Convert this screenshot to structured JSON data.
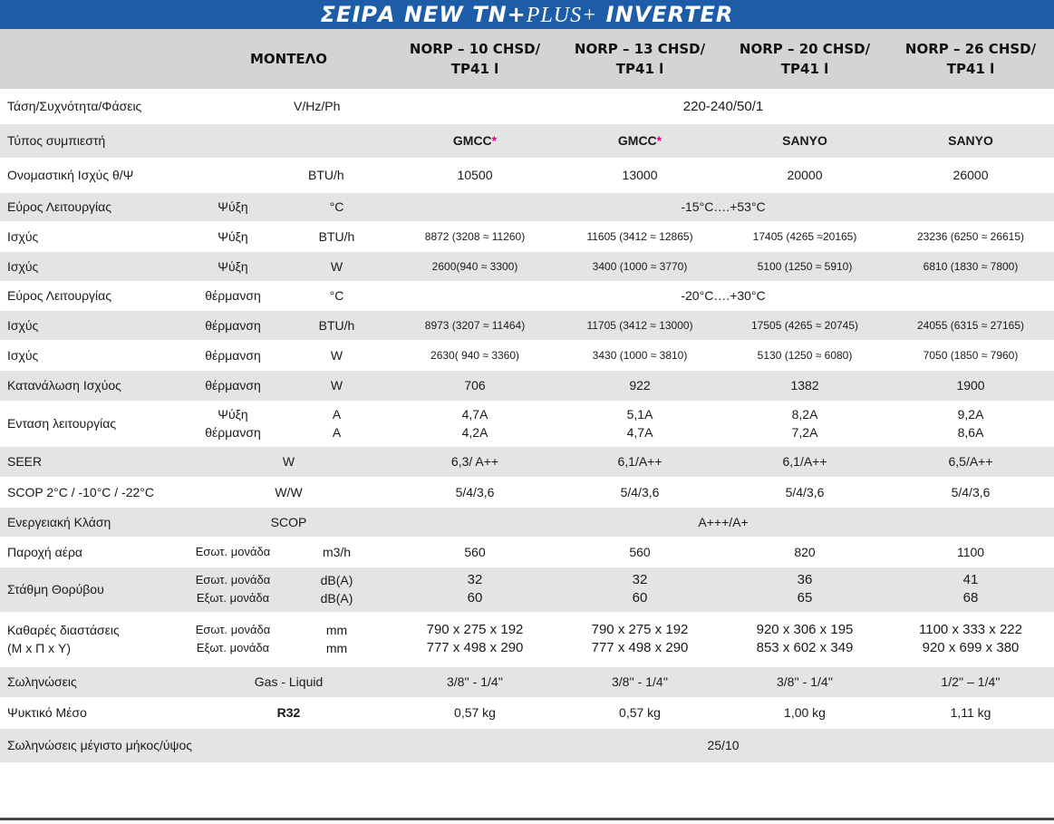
{
  "title": {
    "main": "ΣΕΙΡΑ NEW TN+",
    "plus": "PLUS+",
    "inverter": " INVERTER"
  },
  "header": {
    "model_label": "ΜΟΝΤΕΛΟ",
    "models": [
      {
        "line1": "NORP – 10 CHSD/",
        "line2": "TP41 l"
      },
      {
        "line1": "NORP – 13 CHSD/",
        "line2": "TP41 l"
      },
      {
        "line1": "NORP – 20 CHSD/",
        "line2": "TP41 l"
      },
      {
        "line1": "NORP – 26 CHSD/",
        "line2": "TP41 l"
      }
    ]
  },
  "rows": {
    "voltage": {
      "label": "Τάση/Συχνότητα/Φάσεις",
      "unit": "V/Hz/Ph",
      "value": "220-240/50/1"
    },
    "compressor": {
      "label": "Τύπος συμπιεστή",
      "values": [
        "GMCC",
        "GMCC",
        "SANYO",
        "SANYO"
      ],
      "star": "*"
    },
    "nominal": {
      "label": "Ονομαστική Ισχύς θ/Ψ",
      "unit": "BTU/h",
      "values": [
        "10500",
        "13000",
        "20000",
        "26000"
      ]
    },
    "range_cool": {
      "label": "Εύρος Λειτουργίας",
      "mode": "Ψύξη",
      "unit": "°C",
      "value": "-15°C….+53°C"
    },
    "cool_btu": {
      "label": "Ισχύς",
      "mode": "Ψύξη",
      "unit": "BTU/h",
      "values": [
        "8872 (3208 ≈ 11260)",
        "11605 (3412 ≈ 12865)",
        "17405 (4265 ≈20165)",
        "23236 (6250 ≈ 26615)"
      ]
    },
    "cool_w": {
      "label": "Ισχύς",
      "mode": "Ψύξη",
      "unit": "W",
      "values": [
        "2600(940 ≈ 3300)",
        "3400 (1000 ≈ 3770)",
        "5100 (1250 ≈ 5910)",
        "6810 (1830 ≈ 7800)"
      ]
    },
    "range_heat": {
      "label": "Εύρος Λειτουργίας",
      "mode": "θέρμανση",
      "unit": "°C",
      "value": "-20°C….+30°C"
    },
    "heat_btu": {
      "label": "Ισχύς",
      "mode": "θέρμανση",
      "unit": "BTU/h",
      "values": [
        "8973 (3207 ≈ 11464)",
        "11705 (3412 ≈ 13000)",
        "17505 (4265 ≈ 20745)",
        "24055 (6315 ≈ 27165)"
      ]
    },
    "heat_w": {
      "label": "Ισχύς",
      "mode": "θέρμανση",
      "unit": "W",
      "values": [
        "2630( 940 ≈ 3360)",
        "3430 (1000 ≈ 3810)",
        "5130 (1250 ≈ 6080)",
        "7050 (1850 ≈ 7960)"
      ]
    },
    "consumption": {
      "label": "Κατανάλωση Ισχύος",
      "mode": "θέρμανση",
      "unit": "W",
      "values": [
        "706",
        "922",
        "1382",
        "1900"
      ]
    },
    "current": {
      "label": "Ενταση λειτουργίας",
      "mode1": "Ψύξη",
      "mode2": "θέρμανση",
      "unit1": "A",
      "unit2": "A",
      "values1": [
        "4,7A",
        "5,1A",
        "8,2A",
        "9,2A"
      ],
      "values2": [
        "4,2A",
        "4,7A",
        "7,2A",
        "8,6A"
      ]
    },
    "seer": {
      "label": "SEER",
      "unit": "W",
      "values": [
        "6,3/ A++",
        "6,1/A++",
        "6,1/A++",
        "6,5/A++"
      ]
    },
    "scop": {
      "label": "SCOP 2°C / -10°C / -22°C",
      "unit": "W/W",
      "values": [
        "5/4/3,6",
        "5/4/3,6",
        "5/4/3,6",
        "5/4/3,6"
      ]
    },
    "energy": {
      "label": "Ενεργειακή Κλάση",
      "unit": "SCOP",
      "value": "A+++/A+"
    },
    "airflow": {
      "label": "Παροχή αέρα",
      "mode": "Εσωτ. μονάδα",
      "unit": "m3/h",
      "values": [
        "560",
        "560",
        "820",
        "1100"
      ]
    },
    "noise": {
      "label": "Στάθμη Θορύβου",
      "mode1": "Εσωτ. μονάδα",
      "mode2": "Εξωτ. μονάδα",
      "unit1": "dB(A)",
      "unit2": "dB(A)",
      "values1": [
        "32",
        "32",
        "36",
        "41"
      ],
      "values2": [
        "60",
        "60",
        "65",
        "68"
      ]
    },
    "dimensions": {
      "label1": "Καθαρές διαστάσεις",
      "label2": "(Μ x Π x Υ)",
      "mode1": "Εσωτ. μονάδα",
      "mode2": "Εξωτ. μονάδα",
      "unit1": "mm",
      "unit2": "mm",
      "values1": [
        "790 x 275 x 192",
        "790 x 275 x 192",
        "920 x 306 x 195",
        "1100 x 333 x 222"
      ],
      "values2": [
        "777 x 498 x 290",
        "777 x 498 x 290",
        "853 x 602 x 349",
        "920 x 699 x 380"
      ]
    },
    "piping": {
      "label": "Σωληνώσεις",
      "unit": "Gas - Liquid",
      "values": [
        "3/8'' - 1/4''",
        "3/8'' - 1/4''",
        "3/8'' - 1/4''",
        "1/2'' – 1/4''"
      ]
    },
    "refrigerant": {
      "label": "Ψυκτικό Μέσο",
      "unit": "R32",
      "values": [
        "0,57 kg",
        "0,57 kg",
        "1,00 kg",
        "1,11 kg"
      ]
    },
    "pipe_length": {
      "label": "Σωληνώσεις μέγιστο μήκος/ύψος",
      "value": "25/10"
    }
  },
  "colors": {
    "title_bg": "#1d5da8",
    "header_bg": "#d3d4d6",
    "stripe_bg": "#e3e4e6",
    "star": "#e6007e"
  }
}
